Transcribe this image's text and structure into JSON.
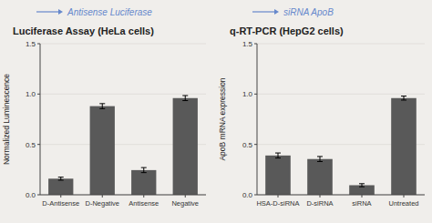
{
  "chart_data": [
    {
      "type": "bar",
      "title": "Luciferase Assay (HeLa cells)",
      "ylabel": "Normalized Luminescence",
      "categories": [
        "D-Antisense",
        "D-Negative",
        "Antisense",
        "Negative"
      ],
      "values": [
        0.16,
        0.88,
        0.245,
        0.96
      ],
      "errors": [
        0.015,
        0.025,
        0.025,
        0.025
      ],
      "color": "#595959",
      "ylim": [
        0,
        1.5
      ],
      "yticks": [
        {
          "value": 0.0,
          "label": "0.0"
        },
        0.5,
        {
          "value": 1.0,
          "label": "1.0"
        },
        1.5
      ],
      "annotations": [
        {
          "text": "Antisense Luciferase",
          "color": "#6688cc"
        }
      ]
    },
    {
      "type": "bar",
      "title": "q-RT-PCR (HepG2 cells)",
      "ylabel": "ApoB mRNA expression",
      "categories": [
        "HSA-D-siRNA",
        "D-siRNA",
        "siRNA",
        "Untreated"
      ],
      "values": [
        0.39,
        0.355,
        0.095,
        0.96
      ],
      "errors": [
        0.025,
        0.025,
        0.015,
        0.02
      ],
      "color": "#595959",
      "ylim": [
        0,
        1.5
      ],
      "yticks": [
        {
          "value": 0.0,
          "label": "0.0"
        },
        0.5,
        {
          "value": 1.0,
          "label": "1.0"
        },
        1.5
      ],
      "annotations": [
        {
          "text": "siRNA ApoB",
          "color": "#6688cc"
        }
      ]
    }
  ]
}
